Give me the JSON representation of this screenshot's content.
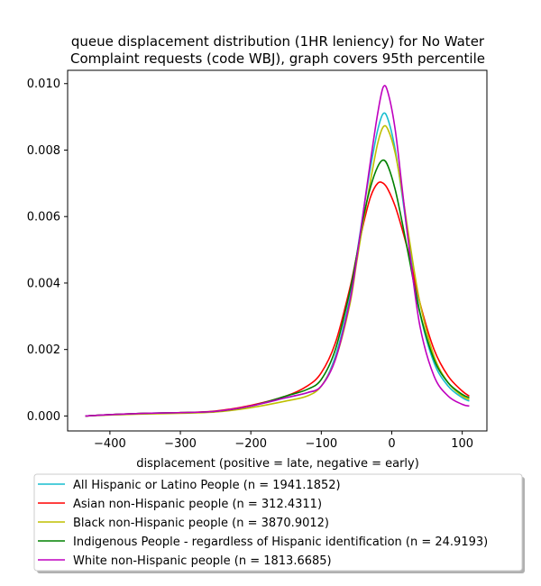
{
  "chart_data": {
    "type": "line",
    "title_lines": [
      "queue displacement distribution (1HR leniency) for No Water",
      "Complaint  requests (code WBJ), graph covers 95th percentile"
    ],
    "xlabel": "displacement (positive = late, negative = early)",
    "ylabel": "",
    "xlim": [
      -460,
      135
    ],
    "ylim": [
      -0.00045,
      0.0104
    ],
    "xticks": [
      -400,
      -300,
      -200,
      -100,
      0,
      100
    ],
    "xtick_labels": [
      "−400",
      "−300",
      "−200",
      "−100",
      "0",
      "100"
    ],
    "yticks": [
      0.0,
      0.002,
      0.004,
      0.006,
      0.008,
      0.01
    ],
    "ytick_labels": [
      "0.000",
      "0.002",
      "0.004",
      "0.006",
      "0.008",
      "0.010"
    ],
    "grid": false,
    "legend_position": "below plot",
    "series": [
      {
        "name": "All Hispanic or Latino People (n = 1941.1852)",
        "color": "#17becf",
        "points": [
          [
            -435,
            0.0
          ],
          [
            -400,
            4e-05
          ],
          [
            -350,
            8e-05
          ],
          [
            -300,
            0.0001
          ],
          [
            -250,
            0.00014
          ],
          [
            -200,
            0.0003
          ],
          [
            -150,
            0.00055
          ],
          [
            -120,
            0.0007
          ],
          [
            -100,
            0.0009
          ],
          [
            -80,
            0.0018
          ],
          [
            -60,
            0.0035
          ],
          [
            -50,
            0.0048
          ],
          [
            -40,
            0.0062
          ],
          [
            -30,
            0.0075
          ],
          [
            -20,
            0.0086
          ],
          [
            -12,
            0.0091
          ],
          [
            -5,
            0.0089
          ],
          [
            5,
            0.008
          ],
          [
            15,
            0.0066
          ],
          [
            25,
            0.0051
          ],
          [
            40,
            0.0031
          ],
          [
            60,
            0.0016
          ],
          [
            80,
            0.0009
          ],
          [
            100,
            0.00055
          ],
          [
            110,
            0.00045
          ]
        ]
      },
      {
        "name": "Asian non-Hispanic people (n = 312.4311)",
        "color": "#ff0000",
        "points": [
          [
            -435,
            0.0
          ],
          [
            -400,
            4e-05
          ],
          [
            -350,
            8e-05
          ],
          [
            -300,
            0.0001
          ],
          [
            -250,
            0.00015
          ],
          [
            -200,
            0.00032
          ],
          [
            -150,
            0.0006
          ],
          [
            -120,
            0.0009
          ],
          [
            -100,
            0.0013
          ],
          [
            -80,
            0.0022
          ],
          [
            -60,
            0.0038
          ],
          [
            -50,
            0.0048
          ],
          [
            -40,
            0.0058
          ],
          [
            -30,
            0.0066
          ],
          [
            -20,
            0.007
          ],
          [
            -12,
            0.007
          ],
          [
            -5,
            0.0068
          ],
          [
            5,
            0.0063
          ],
          [
            15,
            0.0056
          ],
          [
            25,
            0.0048
          ],
          [
            40,
            0.0034
          ],
          [
            60,
            0.002
          ],
          [
            80,
            0.0012
          ],
          [
            100,
            0.00075
          ],
          [
            110,
            0.0006
          ]
        ]
      },
      {
        "name": "Black non-Hispanic people (n = 3870.9012)",
        "color": "#bfbf00",
        "points": [
          [
            -435,
            0.0
          ],
          [
            -400,
            3e-05
          ],
          [
            -350,
            6e-05
          ],
          [
            -300,
            8e-05
          ],
          [
            -250,
            0.00012
          ],
          [
            -200,
            0.00025
          ],
          [
            -150,
            0.00045
          ],
          [
            -120,
            0.0006
          ],
          [
            -100,
            0.0009
          ],
          [
            -80,
            0.0017
          ],
          [
            -60,
            0.0033
          ],
          [
            -50,
            0.0046
          ],
          [
            -40,
            0.0059
          ],
          [
            -30,
            0.0071
          ],
          [
            -20,
            0.0082
          ],
          [
            -12,
            0.0087
          ],
          [
            -5,
            0.0086
          ],
          [
            5,
            0.0079
          ],
          [
            15,
            0.0067
          ],
          [
            25,
            0.0053
          ],
          [
            40,
            0.0034
          ],
          [
            60,
            0.0018
          ],
          [
            80,
            0.001
          ],
          [
            100,
            0.0006
          ],
          [
            110,
            0.0005
          ]
        ]
      },
      {
        "name": "Indigenous People - regardless of Hispanic identification (n = 24.9193)",
        "color": "#008000",
        "points": [
          [
            -435,
            0.0
          ],
          [
            -400,
            4e-05
          ],
          [
            -350,
            8e-05
          ],
          [
            -300,
            0.0001
          ],
          [
            -250,
            0.00014
          ],
          [
            -200,
            0.0003
          ],
          [
            -150,
            0.0006
          ],
          [
            -120,
            0.0008
          ],
          [
            -100,
            0.0011
          ],
          [
            -80,
            0.002
          ],
          [
            -60,
            0.0037
          ],
          [
            -50,
            0.0048
          ],
          [
            -40,
            0.006
          ],
          [
            -30,
            0.0069
          ],
          [
            -20,
            0.0075
          ],
          [
            -12,
            0.0077
          ],
          [
            -5,
            0.0075
          ],
          [
            5,
            0.0068
          ],
          [
            15,
            0.0058
          ],
          [
            25,
            0.0047
          ],
          [
            40,
            0.0031
          ],
          [
            60,
            0.0017
          ],
          [
            80,
            0.001
          ],
          [
            100,
            0.00065
          ],
          [
            110,
            0.00055
          ]
        ]
      },
      {
        "name": "White non-Hispanic people (n = 1813.6685)",
        "color": "#bf00bf",
        "points": [
          [
            -435,
            0.0
          ],
          [
            -400,
            4e-05
          ],
          [
            -350,
            8e-05
          ],
          [
            -300,
            0.0001
          ],
          [
            -250,
            0.00014
          ],
          [
            -200,
            0.0003
          ],
          [
            -150,
            0.00055
          ],
          [
            -120,
            0.0007
          ],
          [
            -100,
            0.0009
          ],
          [
            -80,
            0.0017
          ],
          [
            -60,
            0.0034
          ],
          [
            -50,
            0.0047
          ],
          [
            -40,
            0.0062
          ],
          [
            -30,
            0.0077
          ],
          [
            -20,
            0.0091
          ],
          [
            -12,
            0.0099
          ],
          [
            -5,
            0.0097
          ],
          [
            5,
            0.0086
          ],
          [
            15,
            0.0068
          ],
          [
            25,
            0.005
          ],
          [
            40,
            0.0027
          ],
          [
            60,
            0.0012
          ],
          [
            80,
            0.0006
          ],
          [
            100,
            0.00035
          ],
          [
            110,
            0.0003
          ]
        ]
      }
    ]
  }
}
